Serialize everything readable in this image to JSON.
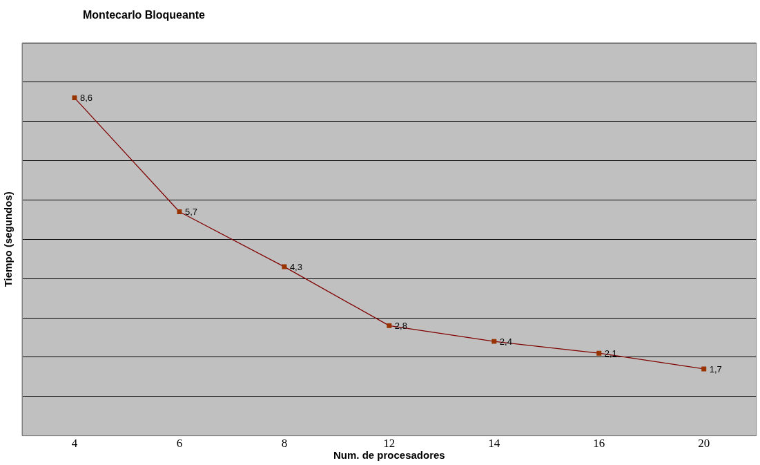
{
  "chart_data": {
    "type": "line",
    "title": "Montecarlo Bloqueante",
    "xlabel": "Num. de procesadores",
    "ylabel": "Tiempo (segundos)",
    "categories": [
      "4",
      "6",
      "8",
      "12",
      "14",
      "16",
      "20"
    ],
    "series": [
      {
        "color": "#800000",
        "values": [
          8.6,
          5.7,
          4.3,
          2.8,
          2.4,
          2.1,
          1.7
        ],
        "value_labels": [
          "8,6",
          "5,7",
          "4,3",
          "2,8",
          "2,4",
          "2,1",
          "1,7"
        ]
      }
    ],
    "ylim": [
      0,
      10
    ],
    "yticks": [
      {
        "value": 0,
        "label": null
      },
      {
        "value": 1,
        "label": null
      },
      {
        "value": 2,
        "label": null
      },
      {
        "value": 3,
        "label": null
      },
      {
        "value": 4,
        "label": null
      },
      {
        "value": 5,
        "label": null
      },
      {
        "value": 6,
        "label": null
      },
      {
        "value": 7,
        "label": null
      },
      {
        "value": 8,
        "label": null
      },
      {
        "value": 9,
        "label": null
      },
      {
        "value": 10,
        "label": null
      }
    ],
    "grid": "y",
    "tick_labels": "x",
    "marker": "square",
    "line_style": "solid",
    "legend": false
  }
}
